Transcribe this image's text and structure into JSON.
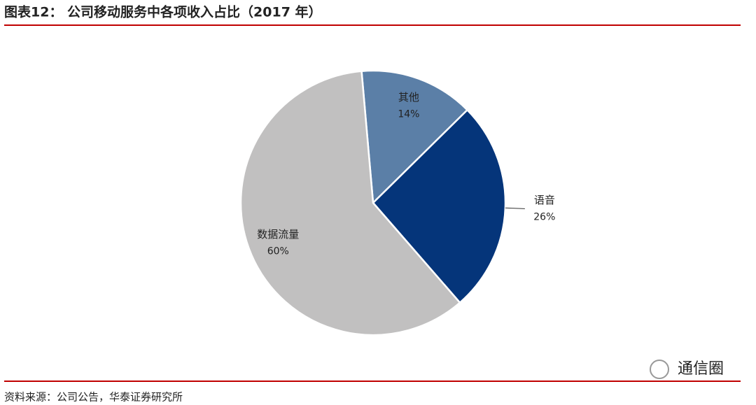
{
  "chart_data": {
    "type": "pie",
    "title": "图表12：  公司移动服务中各项收入占比（2017 年）",
    "categories": [
      "其他",
      "语音",
      "数据流量"
    ],
    "values": [
      14,
      26,
      60
    ],
    "value_labels": [
      "14%",
      "26%",
      "60%"
    ],
    "colors": [
      "#5b7fa7",
      "#05357a",
      "#c1c0c0"
    ],
    "source": "资料来源：公司公告，华泰证券研究所",
    "watermark": "通信圈"
  }
}
